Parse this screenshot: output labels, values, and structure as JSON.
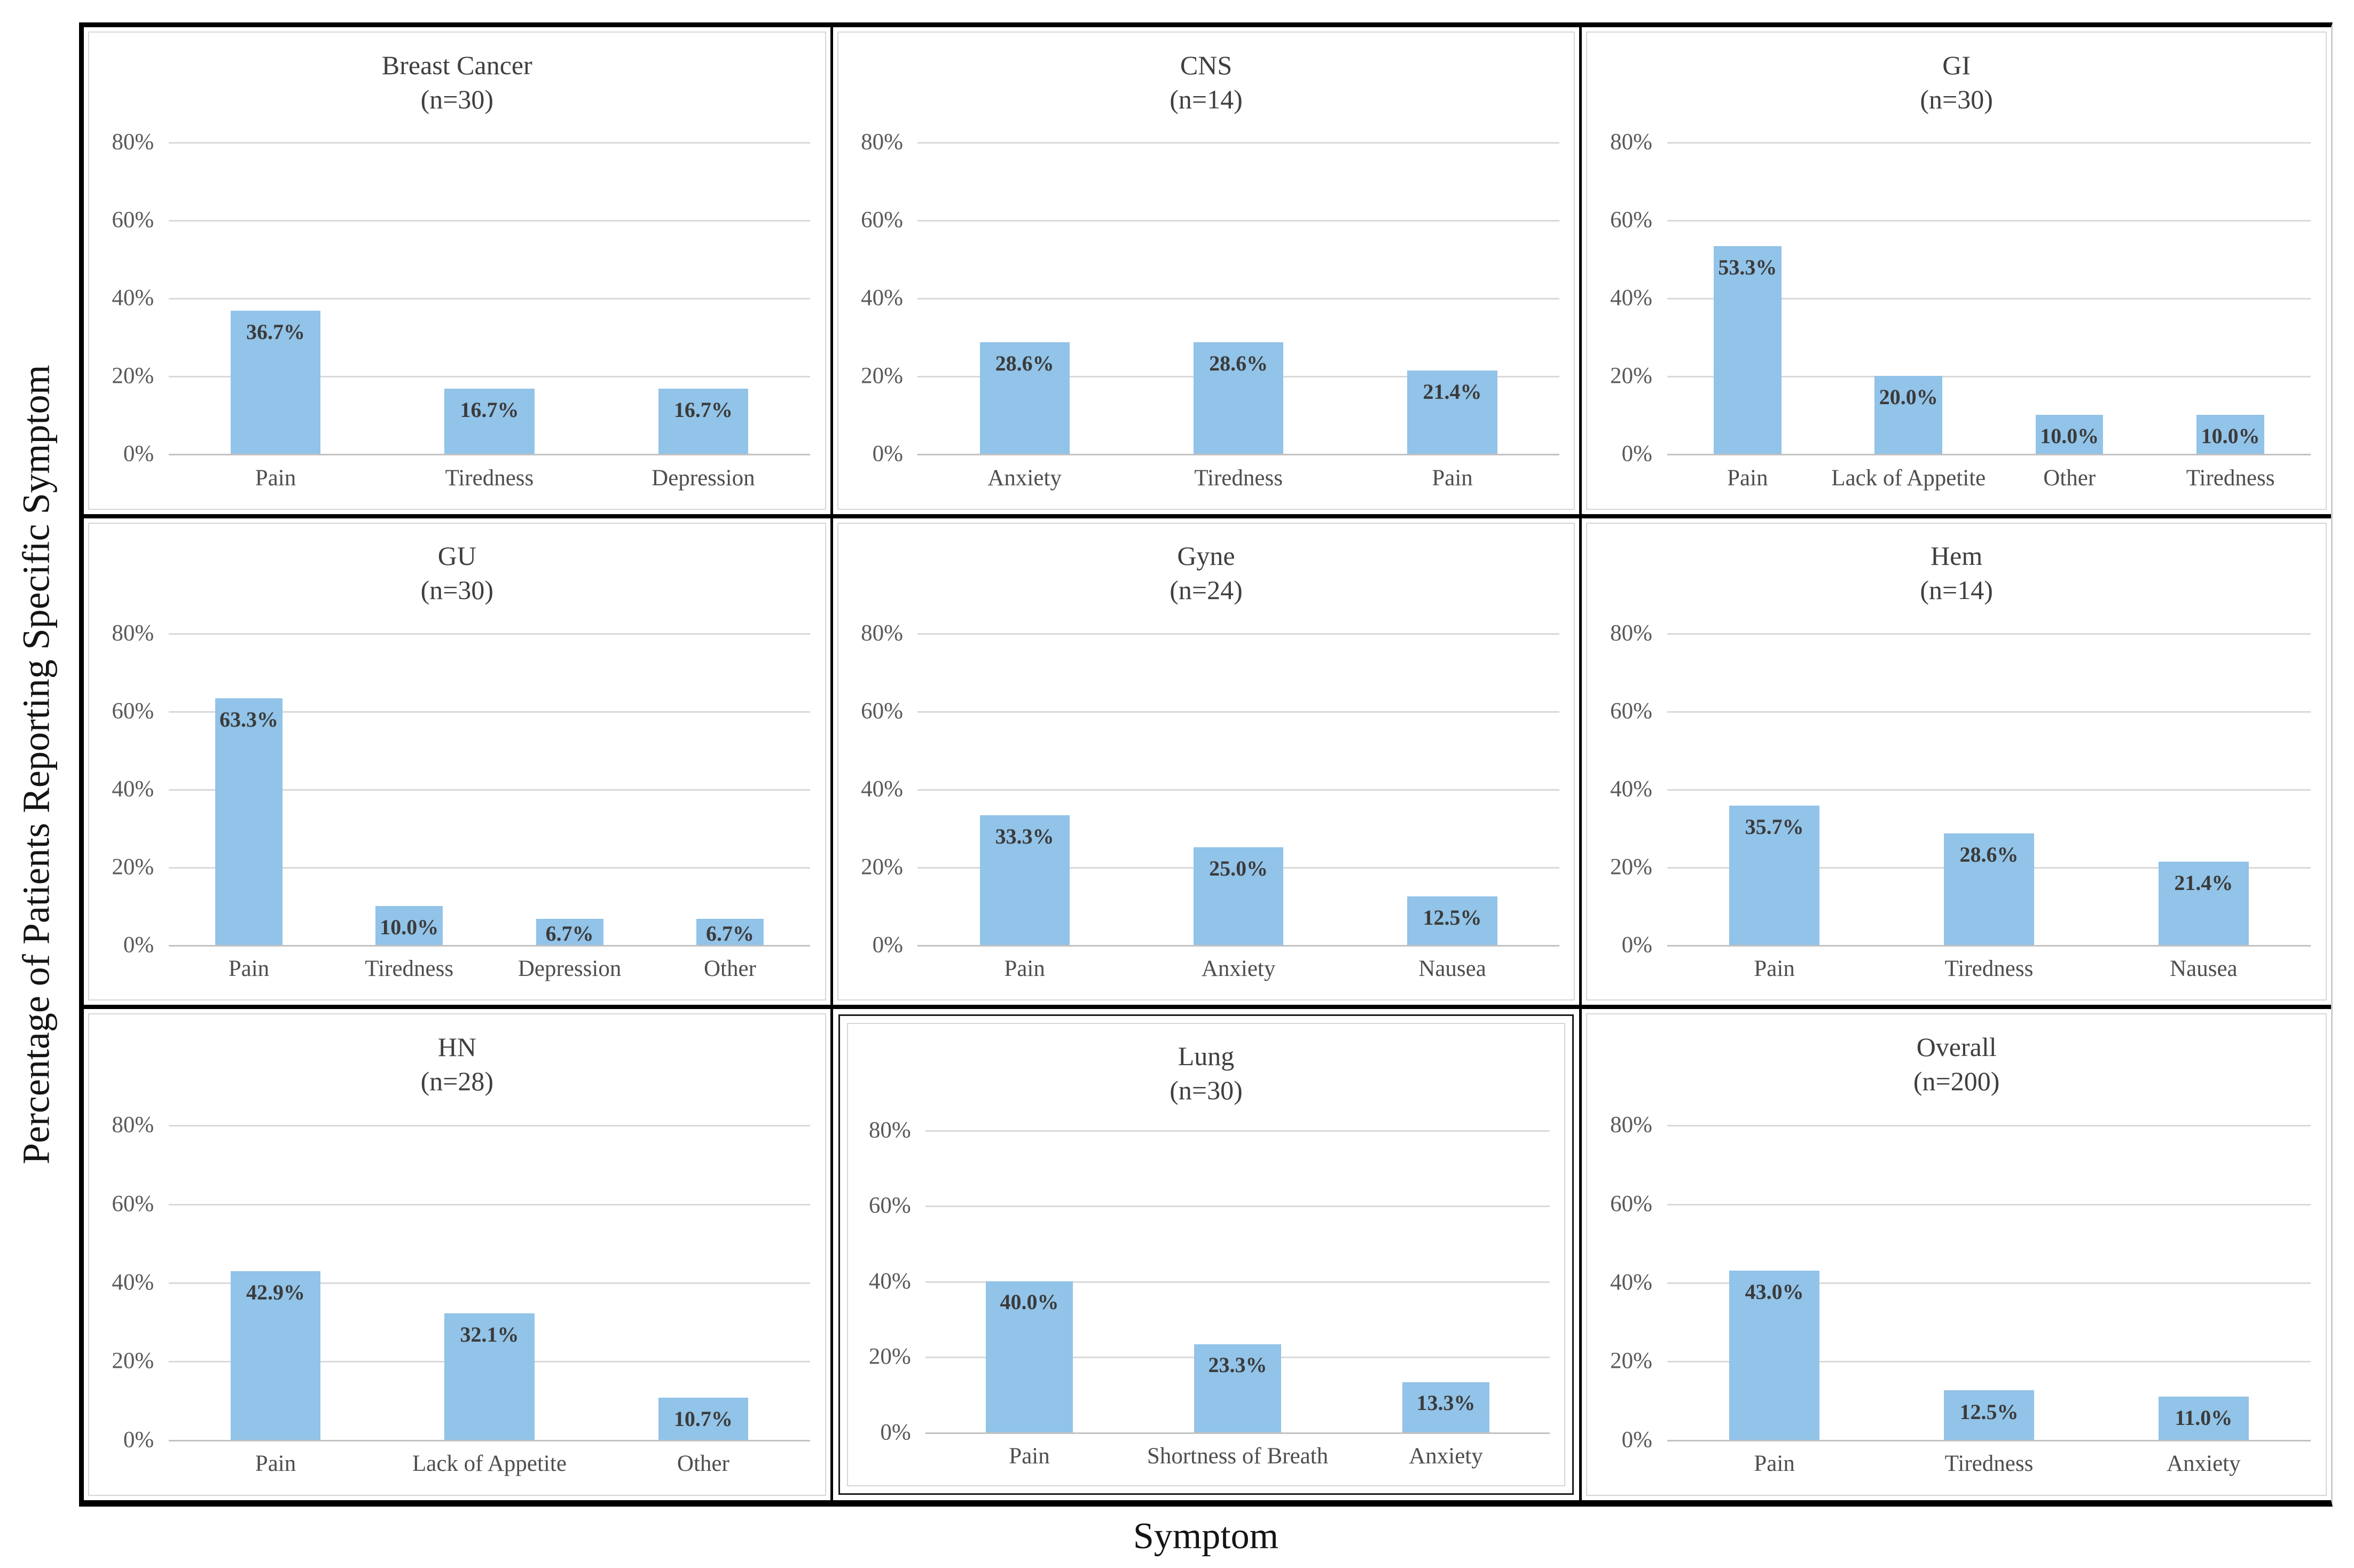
{
  "figure": {
    "y_axis_title": "Percentage of Patients Reporting Specific Symptom",
    "x_axis_title": "Symptom"
  },
  "axes": {
    "y_tick_values": [
      0,
      20,
      40,
      60,
      80
    ],
    "y_tick_labels": [
      "0%",
      "20%",
      "40%",
      "60%",
      "80%"
    ],
    "y_max": 88,
    "gridlines": true,
    "legend": "none"
  },
  "colors": {
    "bar": "#92c3e8",
    "gridline": "#d9d9d9",
    "baseline": "#c2c2c2",
    "tick_label": "#595959",
    "panel_title": "#3f3f3f",
    "value_label": "#3b3b3b",
    "category_label": "#4e4e4e",
    "table_border": "#000000"
  },
  "chart_data": [
    {
      "type": "bar",
      "id": "breast-cancer",
      "title": "Breast Cancer",
      "n_label": "(n=30)",
      "categories": [
        "Pain",
        "Tiredness",
        "Depression"
      ],
      "values": [
        36.7,
        16.7,
        16.7
      ],
      "labels": [
        "36.7%",
        "16.7%",
        "16.7%"
      ],
      "framed": false
    },
    {
      "type": "bar",
      "id": "cns",
      "title": "CNS",
      "n_label": "(n=14)",
      "categories": [
        "Anxiety",
        "Tiredness",
        "Pain"
      ],
      "values": [
        28.6,
        28.6,
        21.4
      ],
      "labels": [
        "28.6%",
        "28.6%",
        "21.4%"
      ],
      "framed": false
    },
    {
      "type": "bar",
      "id": "gi",
      "title": "GI",
      "n_label": "(n=30)",
      "categories": [
        "Pain",
        "Lack of Appetite",
        "Other",
        "Tiredness"
      ],
      "values": [
        53.3,
        20.0,
        10.0,
        10.0
      ],
      "labels": [
        "53.3%",
        "20.0%",
        "10.0%",
        "10.0%"
      ],
      "framed": false
    },
    {
      "type": "bar",
      "id": "gu",
      "title": "GU",
      "n_label": "(n=30)",
      "categories": [
        "Pain",
        "Tiredness",
        "Depression",
        "Other"
      ],
      "values": [
        63.3,
        10.0,
        6.7,
        6.7
      ],
      "labels": [
        "63.3%",
        "10.0%",
        "6.7%",
        "6.7%"
      ],
      "framed": false
    },
    {
      "type": "bar",
      "id": "gyne",
      "title": "Gyne",
      "n_label": "(n=24)",
      "categories": [
        "Pain",
        "Anxiety",
        "Nausea"
      ],
      "values": [
        33.3,
        25.0,
        12.5
      ],
      "labels": [
        "33.3%",
        "25.0%",
        "12.5%"
      ],
      "framed": false
    },
    {
      "type": "bar",
      "id": "hem",
      "title": "Hem",
      "n_label": "(n=14)",
      "categories": [
        "Pain",
        "Tiredness",
        "Nausea"
      ],
      "values": [
        35.7,
        28.6,
        21.4
      ],
      "labels": [
        "35.7%",
        "28.6%",
        "21.4%"
      ],
      "framed": false
    },
    {
      "type": "bar",
      "id": "hn",
      "title": "HN",
      "n_label": "(n=28)",
      "categories": [
        "Pain",
        "Lack of Appetite",
        "Other"
      ],
      "values": [
        42.9,
        32.1,
        10.7
      ],
      "labels": [
        "42.9%",
        "32.1%",
        "10.7%"
      ],
      "framed": false
    },
    {
      "type": "bar",
      "id": "lung",
      "title": "Lung",
      "n_label": "(n=30)",
      "categories": [
        "Pain",
        "Shortness of Breath",
        "Anxiety"
      ],
      "values": [
        40.0,
        23.3,
        13.3
      ],
      "labels": [
        "40.0%",
        "23.3%",
        "13.3%"
      ],
      "framed": true
    },
    {
      "type": "bar",
      "id": "overall",
      "title": "Overall",
      "n_label": "(n=200)",
      "categories": [
        "Pain",
        "Tiredness",
        "Anxiety"
      ],
      "values": [
        43.0,
        12.5,
        11.0
      ],
      "labels": [
        "43.0%",
        "12.5%",
        "11.0%"
      ],
      "framed": false
    }
  ]
}
